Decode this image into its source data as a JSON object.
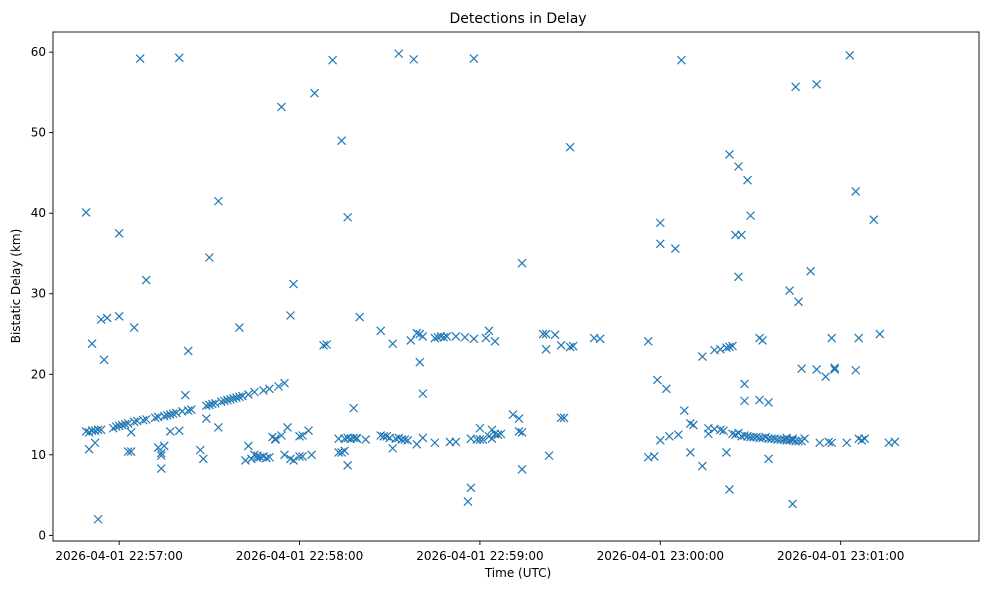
{
  "chart_data": {
    "type": "scatter",
    "title": "Detections in Delay",
    "xlabel": "Time (UTC)",
    "ylabel": "Bistatic Delay (km)",
    "marker": "x",
    "color": "#1f77b4",
    "xlim": [
      "2026-04-01 22:56:38",
      "2026-04-01 23:01:46"
    ],
    "ylim": [
      -0.7,
      62.5
    ],
    "xticks": [
      "2026-04-01 22:57:00",
      "2026-04-01 22:58:00",
      "2026-04-01 22:59:00",
      "2026-04-01 23:00:00",
      "2026-04-01 23:01:00"
    ],
    "yticks": [
      0,
      10,
      20,
      30,
      40,
      50,
      60
    ],
    "grid": false,
    "points": [
      [
        "2026-04-01 22:56:49",
        12.9
      ],
      [
        "2026-04-01 22:56:49",
        40.1
      ],
      [
        "2026-04-01 22:56:50",
        12.8
      ],
      [
        "2026-04-01 22:56:50",
        10.7
      ],
      [
        "2026-04-01 22:56:51",
        13.0
      ],
      [
        "2026-04-01 22:56:51",
        23.8
      ],
      [
        "2026-04-01 22:56:52",
        13.0
      ],
      [
        "2026-04-01 22:56:52",
        11.5
      ],
      [
        "2026-04-01 22:56:53",
        13.1
      ],
      [
        "2026-04-01 22:56:53",
        2.0
      ],
      [
        "2026-04-01 22:56:54",
        13.1
      ],
      [
        "2026-04-01 22:56:54",
        26.8
      ],
      [
        "2026-04-01 22:56:55",
        21.8
      ],
      [
        "2026-04-01 22:56:56",
        27.0
      ],
      [
        "2026-04-01 22:56:58",
        13.3
      ],
      [
        "2026-04-01 22:56:59",
        13.5
      ],
      [
        "2026-04-01 22:57:00",
        13.6
      ],
      [
        "2026-04-01 22:57:00",
        27.2
      ],
      [
        "2026-04-01 22:57:00",
        37.5
      ],
      [
        "2026-04-01 22:57:01",
        13.7
      ],
      [
        "2026-04-01 22:57:02",
        13.8
      ],
      [
        "2026-04-01 22:57:03",
        10.4
      ],
      [
        "2026-04-01 22:57:03",
        13.9
      ],
      [
        "2026-04-01 22:57:04",
        10.4
      ],
      [
        "2026-04-01 22:57:04",
        12.8
      ],
      [
        "2026-04-01 22:57:05",
        14.1
      ],
      [
        "2026-04-01 22:57:05",
        25.8
      ],
      [
        "2026-04-01 22:57:06",
        14.2
      ],
      [
        "2026-04-01 22:57:07",
        59.2
      ],
      [
        "2026-04-01 22:57:08",
        14.3
      ],
      [
        "2026-04-01 22:57:09",
        14.4
      ],
      [
        "2026-04-01 22:57:09",
        31.7
      ],
      [
        "2026-04-01 22:57:12",
        14.6
      ],
      [
        "2026-04-01 22:57:13",
        14.7
      ],
      [
        "2026-04-01 22:57:13",
        10.9
      ],
      [
        "2026-04-01 22:57:14",
        9.9
      ],
      [
        "2026-04-01 22:57:14",
        8.3
      ],
      [
        "2026-04-01 22:57:14",
        10.2
      ],
      [
        "2026-04-01 22:57:15",
        14.8
      ],
      [
        "2026-04-01 22:57:15",
        11.1
      ],
      [
        "2026-04-01 22:57:16",
        14.9
      ],
      [
        "2026-04-01 22:57:17",
        15.0
      ],
      [
        "2026-04-01 22:57:17",
        12.9
      ],
      [
        "2026-04-01 22:57:18",
        15.1
      ],
      [
        "2026-04-01 22:57:19",
        15.2
      ],
      [
        "2026-04-01 22:57:20",
        13.0
      ],
      [
        "2026-04-01 22:57:20",
        59.3
      ],
      [
        "2026-04-01 22:57:21",
        15.4
      ],
      [
        "2026-04-01 22:57:22",
        17.4
      ],
      [
        "2026-04-01 22:57:23",
        15.5
      ],
      [
        "2026-04-01 22:57:23",
        22.9
      ],
      [
        "2026-04-01 22:57:24",
        15.6
      ],
      [
        "2026-04-01 22:57:27",
        10.6
      ],
      [
        "2026-04-01 22:57:28",
        9.5
      ],
      [
        "2026-04-01 22:57:29",
        16.1
      ],
      [
        "2026-04-01 22:57:29",
        14.5
      ],
      [
        "2026-04-01 22:57:30",
        16.2
      ],
      [
        "2026-04-01 22:57:30",
        34.5
      ],
      [
        "2026-04-01 22:57:31",
        16.3
      ],
      [
        "2026-04-01 22:57:32",
        16.4
      ],
      [
        "2026-04-01 22:57:33",
        13.4
      ],
      [
        "2026-04-01 22:57:33",
        41.5
      ],
      [
        "2026-04-01 22:57:34",
        16.6
      ],
      [
        "2026-04-01 22:57:35",
        16.7
      ],
      [
        "2026-04-01 22:57:36",
        16.8
      ],
      [
        "2026-04-01 22:57:37",
        16.9
      ],
      [
        "2026-04-01 22:57:38",
        17.0
      ],
      [
        "2026-04-01 22:57:39",
        17.1
      ],
      [
        "2026-04-01 22:57:40",
        17.2
      ],
      [
        "2026-04-01 22:57:40",
        25.8
      ],
      [
        "2026-04-01 22:57:41",
        17.3
      ],
      [
        "2026-04-01 22:57:42",
        9.3
      ],
      [
        "2026-04-01 22:57:43",
        17.5
      ],
      [
        "2026-04-01 22:57:43",
        11.1
      ],
      [
        "2026-04-01 22:57:44",
        9.5
      ],
      [
        "2026-04-01 22:57:45",
        10.0
      ],
      [
        "2026-04-01 22:57:45",
        17.8
      ],
      [
        "2026-04-01 22:57:46",
        9.6
      ],
      [
        "2026-04-01 22:57:46",
        9.9
      ],
      [
        "2026-04-01 22:57:47",
        9.7
      ],
      [
        "2026-04-01 22:57:48",
        18.0
      ],
      [
        "2026-04-01 22:57:48",
        9.8
      ],
      [
        "2026-04-01 22:57:49",
        9.6
      ],
      [
        "2026-04-01 22:57:50",
        18.2
      ],
      [
        "2026-04-01 22:57:50",
        9.7
      ],
      [
        "2026-04-01 22:57:51",
        12.2
      ],
      [
        "2026-04-01 22:57:52",
        11.9
      ],
      [
        "2026-04-01 22:57:52",
        12.0
      ],
      [
        "2026-04-01 22:57:53",
        18.5
      ],
      [
        "2026-04-01 22:57:54",
        53.2
      ],
      [
        "2026-04-01 22:57:54",
        12.4
      ],
      [
        "2026-04-01 22:57:55",
        10.0
      ],
      [
        "2026-04-01 22:57:55",
        18.9
      ],
      [
        "2026-04-01 22:57:56",
        13.4
      ],
      [
        "2026-04-01 22:57:57",
        9.5
      ],
      [
        "2026-04-01 22:57:57",
        27.3
      ],
      [
        "2026-04-01 22:57:58",
        9.3
      ],
      [
        "2026-04-01 22:57:58",
        31.2
      ],
      [
        "2026-04-01 22:58:00",
        12.3
      ],
      [
        "2026-04-01 22:58:00",
        9.8
      ],
      [
        "2026-04-01 22:58:01",
        9.8
      ],
      [
        "2026-04-01 22:58:01",
        12.4
      ],
      [
        "2026-04-01 22:58:03",
        13.0
      ],
      [
        "2026-04-01 22:58:04",
        10.0
      ],
      [
        "2026-04-01 22:58:05",
        54.9
      ],
      [
        "2026-04-01 22:58:08",
        23.6
      ],
      [
        "2026-04-01 22:58:09",
        23.7
      ],
      [
        "2026-04-01 22:58:11",
        59.0
      ],
      [
        "2026-04-01 22:58:13",
        12.0
      ],
      [
        "2026-04-01 22:58:13",
        10.3
      ],
      [
        "2026-04-01 22:58:14",
        49.0
      ],
      [
        "2026-04-01 22:58:14",
        10.3
      ],
      [
        "2026-04-01 22:58:15",
        12.0
      ],
      [
        "2026-04-01 22:58:15",
        10.5
      ],
      [
        "2026-04-01 22:58:16",
        8.7
      ],
      [
        "2026-04-01 22:58:16",
        39.5
      ],
      [
        "2026-04-01 22:58:16",
        12.1
      ],
      [
        "2026-04-01 22:58:17",
        12.0
      ],
      [
        "2026-04-01 22:58:18",
        12.1
      ],
      [
        "2026-04-01 22:58:18",
        15.8
      ],
      [
        "2026-04-01 22:58:19",
        12.0
      ],
      [
        "2026-04-01 22:58:19",
        12.1
      ],
      [
        "2026-04-01 22:58:20",
        27.1
      ],
      [
        "2026-04-01 22:58:22",
        11.9
      ],
      [
        "2026-04-01 22:58:27",
        25.4
      ],
      [
        "2026-04-01 22:58:27",
        12.4
      ],
      [
        "2026-04-01 22:58:28",
        12.3
      ],
      [
        "2026-04-01 22:58:29",
        12.3
      ],
      [
        "2026-04-01 22:58:30",
        12.1
      ],
      [
        "2026-04-01 22:58:31",
        10.8
      ],
      [
        "2026-04-01 22:58:31",
        23.8
      ],
      [
        "2026-04-01 22:58:32",
        12.0
      ],
      [
        "2026-04-01 22:58:33",
        59.8
      ],
      [
        "2026-04-01 22:58:33",
        12.1
      ],
      [
        "2026-04-01 22:58:34",
        11.9
      ],
      [
        "2026-04-01 22:58:35",
        11.9
      ],
      [
        "2026-04-01 22:58:36",
        11.8
      ],
      [
        "2026-04-01 22:58:37",
        24.2
      ],
      [
        "2026-04-01 22:58:38",
        59.1
      ],
      [
        "2026-04-01 22:58:39",
        11.3
      ],
      [
        "2026-04-01 22:58:39",
        25.1
      ],
      [
        "2026-04-01 22:58:40",
        25.0
      ],
      [
        "2026-04-01 22:58:40",
        21.5
      ],
      [
        "2026-04-01 22:58:41",
        24.7
      ],
      [
        "2026-04-01 22:58:41",
        17.6
      ],
      [
        "2026-04-01 22:58:41",
        12.1
      ],
      [
        "2026-04-01 22:58:45",
        11.5
      ],
      [
        "2026-04-01 22:58:45",
        24.5
      ],
      [
        "2026-04-01 22:58:46",
        24.6
      ],
      [
        "2026-04-01 22:58:47",
        24.7
      ],
      [
        "2026-04-01 22:58:48",
        24.6
      ],
      [
        "2026-04-01 22:58:49",
        24.7
      ],
      [
        "2026-04-01 22:58:50",
        11.6
      ],
      [
        "2026-04-01 22:58:52",
        24.7
      ],
      [
        "2026-04-01 22:58:52",
        11.6
      ],
      [
        "2026-04-01 22:58:55",
        24.6
      ],
      [
        "2026-04-01 22:58:56",
        4.2
      ],
      [
        "2026-04-01 22:58:57",
        5.9
      ],
      [
        "2026-04-01 22:58:57",
        12.0
      ],
      [
        "2026-04-01 22:58:58",
        24.4
      ],
      [
        "2026-04-01 22:58:58",
        59.2
      ],
      [
        "2026-04-01 22:58:59",
        11.9
      ],
      [
        "2026-04-01 22:59:00",
        13.3
      ],
      [
        "2026-04-01 22:59:00",
        11.9
      ],
      [
        "2026-04-01 22:59:01",
        11.9
      ],
      [
        "2026-04-01 22:59:02",
        24.5
      ],
      [
        "2026-04-01 22:59:03",
        25.4
      ],
      [
        "2026-04-01 22:59:03",
        12.3
      ],
      [
        "2026-04-01 22:59:04",
        12.0
      ],
      [
        "2026-04-01 22:59:04",
        13.1
      ],
      [
        "2026-04-01 22:59:05",
        12.6
      ],
      [
        "2026-04-01 22:59:05",
        24.1
      ],
      [
        "2026-04-01 22:59:06",
        12.5
      ],
      [
        "2026-04-01 22:59:07",
        12.6
      ],
      [
        "2026-04-01 22:59:11",
        15.0
      ],
      [
        "2026-04-01 22:59:13",
        14.5
      ],
      [
        "2026-04-01 22:59:13",
        12.9
      ],
      [
        "2026-04-01 22:59:14",
        33.8
      ],
      [
        "2026-04-01 22:59:14",
        12.8
      ],
      [
        "2026-04-01 22:59:14",
        8.2
      ],
      [
        "2026-04-01 22:59:21",
        25.0
      ],
      [
        "2026-04-01 22:59:22",
        25.0
      ],
      [
        "2026-04-01 22:59:22",
        23.1
      ],
      [
        "2026-04-01 22:59:23",
        9.9
      ],
      [
        "2026-04-01 22:59:25",
        24.9
      ],
      [
        "2026-04-01 22:59:27",
        14.6
      ],
      [
        "2026-04-01 22:59:27",
        23.6
      ],
      [
        "2026-04-01 22:59:28",
        14.6
      ],
      [
        "2026-04-01 22:59:30",
        48.2
      ],
      [
        "2026-04-01 22:59:30",
        23.4
      ],
      [
        "2026-04-01 22:59:31",
        23.5
      ],
      [
        "2026-04-01 22:59:38",
        24.5
      ],
      [
        "2026-04-01 22:59:40",
        24.4
      ],
      [
        "2026-04-01 22:59:56",
        24.1
      ],
      [
        "2026-04-01 22:59:56",
        9.7
      ],
      [
        "2026-04-01 22:59:58",
        9.8
      ],
      [
        "2026-04-01 22:59:59",
        19.3
      ],
      [
        "2026-04-01 23:00:00",
        36.2
      ],
      [
        "2026-04-01 23:00:00",
        38.8
      ],
      [
        "2026-04-01 23:00:00",
        11.8
      ],
      [
        "2026-04-01 23:00:02",
        18.2
      ],
      [
        "2026-04-01 23:00:03",
        12.3
      ],
      [
        "2026-04-01 23:00:05",
        35.6
      ],
      [
        "2026-04-01 23:00:06",
        12.5
      ],
      [
        "2026-04-01 23:00:07",
        59.0
      ],
      [
        "2026-04-01 23:00:08",
        15.5
      ],
      [
        "2026-04-01 23:00:10",
        13.9
      ],
      [
        "2026-04-01 23:00:10",
        10.3
      ],
      [
        "2026-04-01 23:00:11",
        13.7
      ],
      [
        "2026-04-01 23:00:14",
        8.6
      ],
      [
        "2026-04-01 23:00:14",
        22.2
      ],
      [
        "2026-04-01 23:00:16",
        12.6
      ],
      [
        "2026-04-01 23:00:16",
        13.3
      ],
      [
        "2026-04-01 23:00:18",
        23.0
      ],
      [
        "2026-04-01 23:00:18",
        13.2
      ],
      [
        "2026-04-01 23:00:20",
        13.1
      ],
      [
        "2026-04-01 23:00:20",
        23.1
      ],
      [
        "2026-04-01 23:00:21",
        13.0
      ],
      [
        "2026-04-01 23:00:22",
        10.3
      ],
      [
        "2026-04-01 23:00:22",
        23.3
      ],
      [
        "2026-04-01 23:00:23",
        23.4
      ],
      [
        "2026-04-01 23:00:23",
        5.7
      ],
      [
        "2026-04-01 23:00:23",
        47.3
      ],
      [
        "2026-04-01 23:00:24",
        23.5
      ],
      [
        "2026-04-01 23:00:24",
        12.6
      ],
      [
        "2026-04-01 23:00:25",
        37.3
      ],
      [
        "2026-04-01 23:00:25",
        12.5
      ],
      [
        "2026-04-01 23:00:26",
        32.1
      ],
      [
        "2026-04-01 23:00:26",
        12.7
      ],
      [
        "2026-04-01 23:00:26",
        45.8
      ],
      [
        "2026-04-01 23:00:27",
        37.3
      ],
      [
        "2026-04-01 23:00:27",
        12.3
      ],
      [
        "2026-04-01 23:00:28",
        12.4
      ],
      [
        "2026-04-01 23:00:28",
        18.8
      ],
      [
        "2026-04-01 23:00:28",
        16.7
      ],
      [
        "2026-04-01 23:00:29",
        12.3
      ],
      [
        "2026-04-01 23:00:29",
        44.1
      ],
      [
        "2026-04-01 23:00:30",
        12.2
      ],
      [
        "2026-04-01 23:00:30",
        39.7
      ],
      [
        "2026-04-01 23:00:31",
        12.2
      ],
      [
        "2026-04-01 23:00:32",
        12.2
      ],
      [
        "2026-04-01 23:00:33",
        12.1
      ],
      [
        "2026-04-01 23:00:33",
        24.5
      ],
      [
        "2026-04-01 23:00:33",
        16.8
      ],
      [
        "2026-04-01 23:00:34",
        12.1
      ],
      [
        "2026-04-01 23:00:34",
        24.2
      ],
      [
        "2026-04-01 23:00:35",
        12.2
      ],
      [
        "2026-04-01 23:00:36",
        12.0
      ],
      [
        "2026-04-01 23:00:36",
        16.5
      ],
      [
        "2026-04-01 23:00:36",
        9.5
      ],
      [
        "2026-04-01 23:00:37",
        12.0
      ],
      [
        "2026-04-01 23:00:38",
        12.0
      ],
      [
        "2026-04-01 23:00:39",
        11.9
      ],
      [
        "2026-04-01 23:00:40",
        11.9
      ],
      [
        "2026-04-01 23:00:41",
        11.9
      ],
      [
        "2026-04-01 23:00:42",
        11.8
      ],
      [
        "2026-04-01 23:00:42",
        12.1
      ],
      [
        "2026-04-01 23:00:43",
        11.8
      ],
      [
        "2026-04-01 23:00:43",
        30.4
      ],
      [
        "2026-04-01 23:00:44",
        11.8
      ],
      [
        "2026-04-01 23:00:44",
        12.0
      ],
      [
        "2026-04-01 23:00:44",
        3.9
      ],
      [
        "2026-04-01 23:00:45",
        11.7
      ],
      [
        "2026-04-01 23:00:45",
        55.7
      ],
      [
        "2026-04-01 23:00:46",
        11.7
      ],
      [
        "2026-04-01 23:00:46",
        29.0
      ],
      [
        "2026-04-01 23:00:47",
        11.7
      ],
      [
        "2026-04-01 23:00:47",
        20.7
      ],
      [
        "2026-04-01 23:00:48",
        12.0
      ],
      [
        "2026-04-01 23:00:50",
        32.8
      ],
      [
        "2026-04-01 23:00:52",
        56.0
      ],
      [
        "2026-04-01 23:00:52",
        20.6
      ],
      [
        "2026-04-01 23:00:53",
        11.5
      ],
      [
        "2026-04-01 23:00:55",
        19.7
      ],
      [
        "2026-04-01 23:00:56",
        11.6
      ],
      [
        "2026-04-01 23:00:57",
        11.5
      ],
      [
        "2026-04-01 23:00:57",
        24.5
      ],
      [
        "2026-04-01 23:00:58",
        20.6
      ],
      [
        "2026-04-01 23:00:58",
        20.8
      ],
      [
        "2026-04-01 23:01:02",
        11.5
      ],
      [
        "2026-04-01 23:01:03",
        59.6
      ],
      [
        "2026-04-01 23:01:05",
        42.7
      ],
      [
        "2026-04-01 23:01:05",
        20.5
      ],
      [
        "2026-04-01 23:01:06",
        24.5
      ],
      [
        "2026-04-01 23:01:06",
        12.0
      ],
      [
        "2026-04-01 23:01:07",
        11.8
      ],
      [
        "2026-04-01 23:01:08",
        12.0
      ],
      [
        "2026-04-01 23:01:11",
        39.2
      ],
      [
        "2026-04-01 23:01:13",
        25.0
      ],
      [
        "2026-04-01 23:01:16",
        11.5
      ],
      [
        "2026-04-01 23:01:18",
        11.6
      ]
    ]
  }
}
